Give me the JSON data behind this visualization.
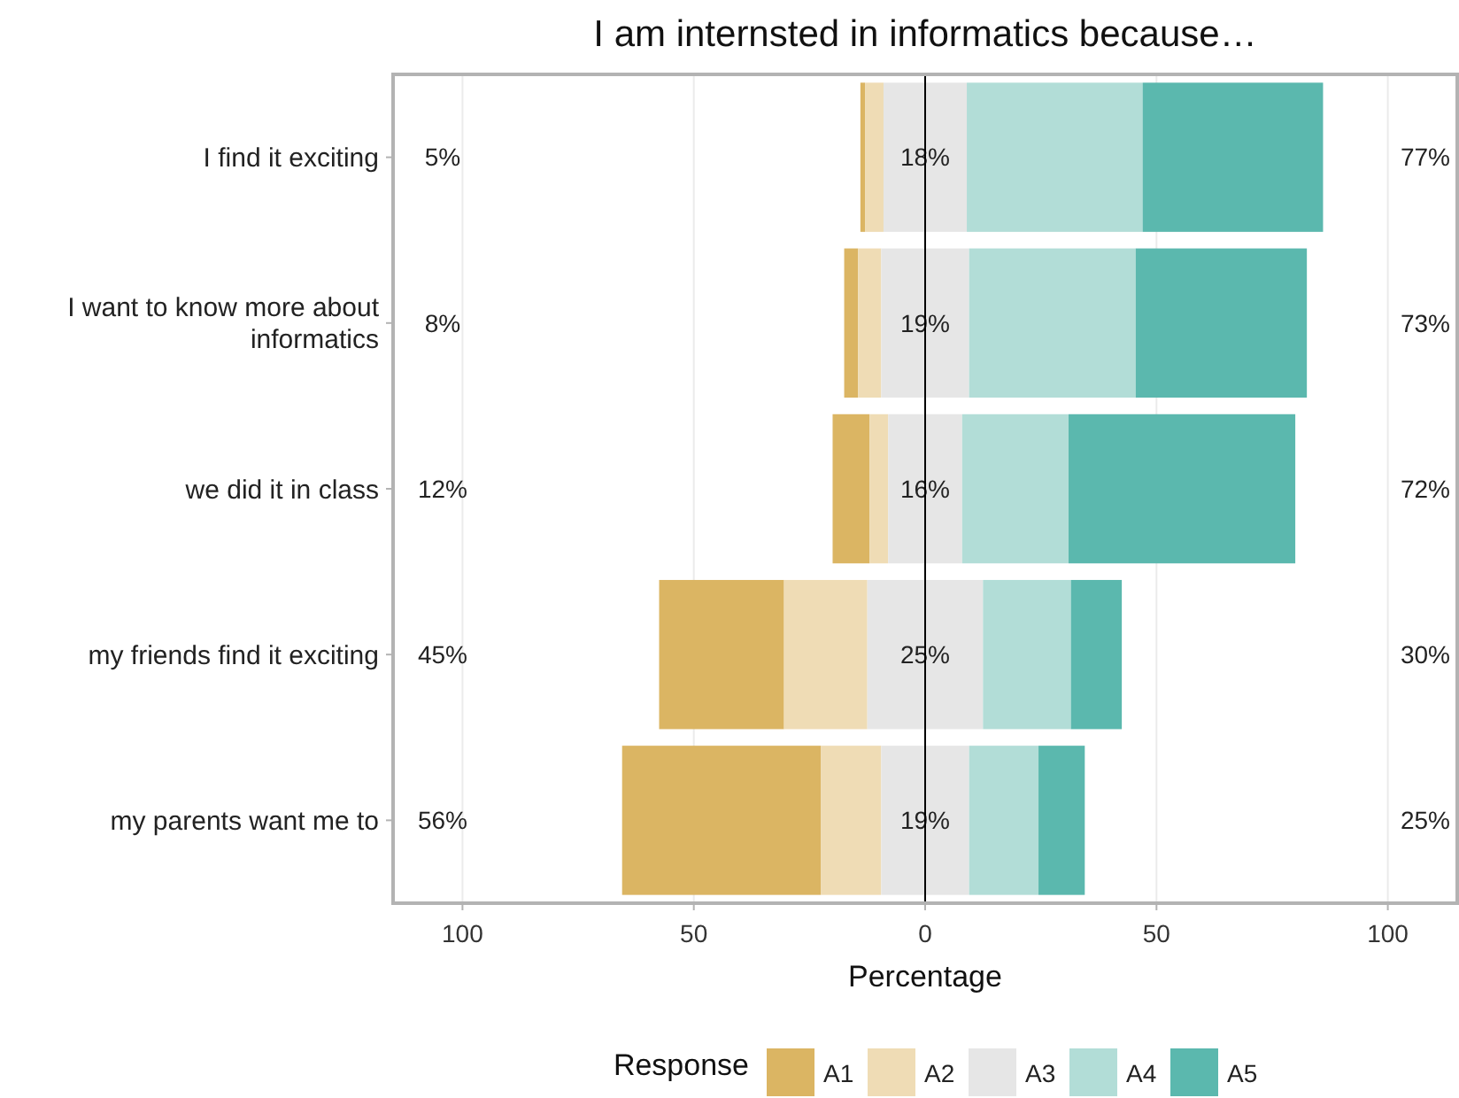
{
  "chart_data": {
    "type": "bar",
    "orientation": "horizontal",
    "title": "I am internsted in informatics because…",
    "xlabel": "Percentage",
    "legend_title": "Response",
    "legend": "bottom",
    "grid": "x",
    "categories": [
      "I find it exciting",
      "I want to know more about informatics",
      "we did it in class",
      "my friends find it exciting",
      "my parents want me to"
    ],
    "series": [
      {
        "name": "A1",
        "color": "#dbb563",
        "base": [
          -14,
          -17.5,
          -20,
          -57.5,
          -65.5
        ],
        "values": [
          1,
          3,
          8,
          27,
          43
        ]
      },
      {
        "name": "A2",
        "color": "#efdcb5",
        "base": [
          -13,
          -14.5,
          -12,
          -30.5,
          -22.5
        ],
        "values": [
          4,
          5,
          4,
          18,
          13
        ]
      },
      {
        "name": "A3",
        "color": "#e6e6e6",
        "base": [
          -9,
          -9.5,
          -8,
          -12.5,
          -9.5
        ],
        "values": [
          18,
          19,
          16,
          25,
          19
        ],
        "value_labels": [
          "18%",
          "19%",
          "16%",
          "25%",
          "19%"
        ]
      },
      {
        "name": "A4",
        "color": "#b2ddd7",
        "base": [
          9,
          9.5,
          8,
          12.5,
          9.5
        ],
        "values": [
          38,
          36,
          23,
          19,
          15
        ]
      },
      {
        "name": "A5",
        "color": "#5bb8ae",
        "base": [
          47,
          45.5,
          31,
          31.5,
          24.5
        ],
        "values": [
          39,
          37,
          49,
          11,
          10
        ]
      }
    ],
    "xlim": [
      -115,
      115
    ],
    "xticks": [
      {
        "value": -100,
        "label": "100"
      },
      {
        "value": -50,
        "label": "50"
      },
      0,
      50,
      100
    ],
    "ref_lines": [
      {
        "axis": "x",
        "value": 0,
        "color": "#000000"
      }
    ],
    "annotations": [
      "5%",
      "8%",
      "12%",
      "45%",
      "56%",
      "77%",
      "73%",
      "72%",
      "30%",
      "25%"
    ]
  }
}
